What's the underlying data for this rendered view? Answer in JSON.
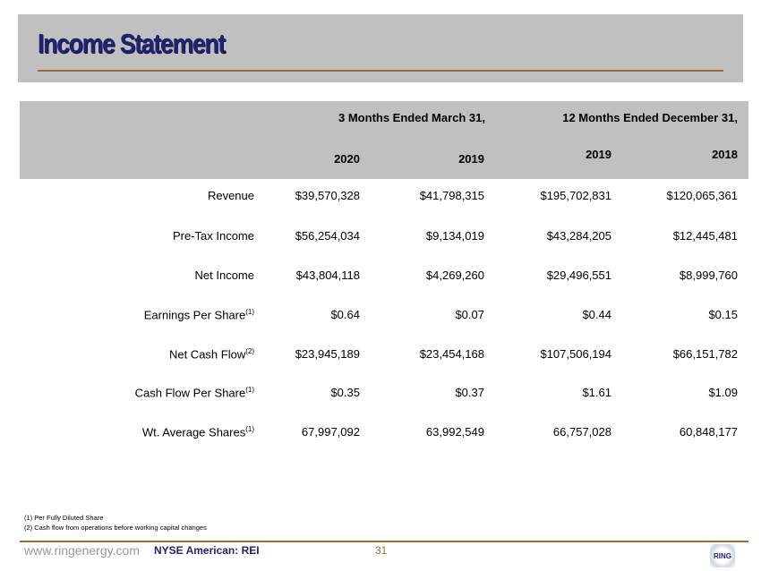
{
  "header": {
    "title": "Income Statement"
  },
  "table": {
    "group_headers": [
      "3 Months Ended March 31,",
      "12 Months Ended December 31,"
    ],
    "year_headers": [
      "2020",
      "2019",
      "2019",
      "2018"
    ],
    "rows": [
      {
        "label": "Revenue",
        "sup": "",
        "values": [
          "$39,570,328",
          "$41,798,315",
          "$195,702,831",
          "$120,065,361"
        ]
      },
      {
        "label": "Pre-Tax Income",
        "sup": "",
        "values": [
          "$56,254,034",
          "$9,134,019",
          "$43,284,205",
          "$12,445,481"
        ]
      },
      {
        "label": "Net Income",
        "sup": "",
        "values": [
          "$43,804,118",
          "$4,269,260",
          "$29,496,551",
          "$8,999,760"
        ]
      },
      {
        "label": "Earnings Per Share",
        "sup": "(1)",
        "values": [
          "$0.64",
          "$0.07",
          "$0.44",
          "$0.15"
        ]
      },
      {
        "label": "Net Cash Flow",
        "sup": "(2)",
        "values": [
          "$23,945,189",
          "$23,454,168",
          "$107,506,194",
          "$66,151,782"
        ]
      },
      {
        "label": "Cash Flow Per Share",
        "sup": "(1)",
        "values": [
          "$0.35",
          "$0.37",
          "$1.61",
          "$1.09"
        ]
      },
      {
        "label": "Wt. Average Shares",
        "sup": "(1)",
        "values": [
          "67,997,092",
          "63,992,549",
          "66,757,028",
          "60,848,177"
        ]
      }
    ]
  },
  "footnotes": [
    "(1) Per Fully Diluted Share",
    "(2) Cash flow from operations before working capital changes"
  ],
  "footer": {
    "website": "www.ringenergy.com",
    "ticker": "NYSE American: REI",
    "page": "31",
    "logo_text": "RING"
  }
}
